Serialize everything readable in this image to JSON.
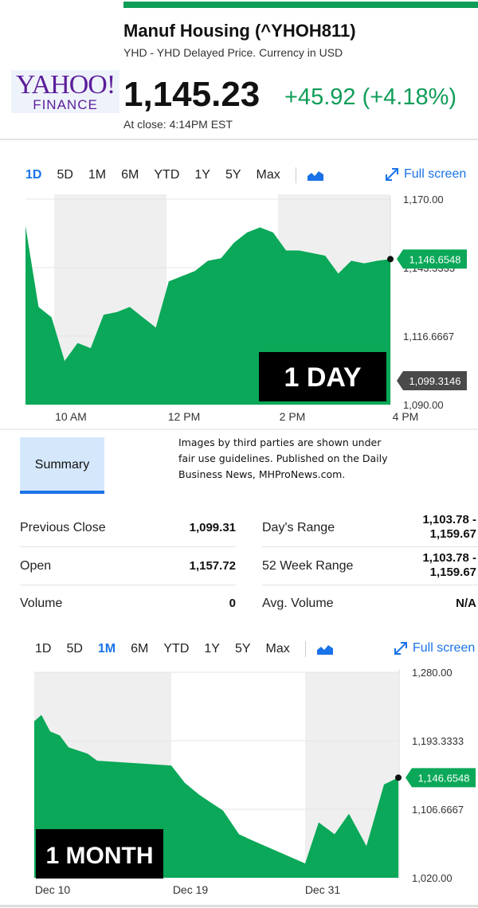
{
  "colors": {
    "green": "#0f9d58",
    "accent": "#1a73e8",
    "chart_fill": "#0aa858",
    "grid_band": "#efefef",
    "label_dark": "#4a4a4a"
  },
  "header": {
    "title": "Manuf Housing (^YHOH811)",
    "subtitle": "YHD - YHD Delayed Price. Currency in USD",
    "price": "1,145.23",
    "change": "+45.92 (+4.18%)",
    "close_time": "At close: 4:14PM EST"
  },
  "logo": {
    "brand": "YAHOO!",
    "sub": "FINANCE"
  },
  "chart1": {
    "tabs": [
      "1D",
      "5D",
      "1M",
      "6M",
      "YTD",
      "1Y",
      "5Y",
      "Max"
    ],
    "active_tab": "1D",
    "chart_type_icon": "area-chart-icon",
    "fullscreen_label": "Full screen",
    "y_ticks": [
      "1,170.00",
      "1,143.3333",
      "1,116.6667",
      "1,090.00"
    ],
    "x_ticks": [
      "10 AM",
      "12 PM",
      "2 PM",
      "4 PM"
    ],
    "current_label": "1,146.6548",
    "prev_close_label": "1,099.3146",
    "watermark": "1 DAY"
  },
  "summary": {
    "tab_label": "Summary",
    "disclaimer_lines": [
      "Images by third parties are shown under",
      "fair use guidelines.  Published on the Daily",
      "Business News, MHProNews.com."
    ],
    "left": [
      {
        "label": "Previous Close",
        "value": "1,099.31"
      },
      {
        "label": "Open",
        "value": "1,157.72"
      },
      {
        "label": "Volume",
        "value": "0"
      }
    ],
    "right": [
      {
        "label": "Day's Range",
        "value1": "1,103.78 -",
        "value2": "1,159.67"
      },
      {
        "label": "52 Week Range",
        "value1": "1,103.78 -",
        "value2": "1,159.67"
      },
      {
        "label": "Avg. Volume",
        "value1": "N/A",
        "value2": ""
      }
    ]
  },
  "chart2": {
    "tabs": [
      "1D",
      "5D",
      "1M",
      "6M",
      "YTD",
      "1Y",
      "5Y",
      "Max"
    ],
    "active_tab": "1M",
    "chart_type_icon": "area-chart-icon",
    "fullscreen_label": "Full screen",
    "y_ticks": [
      "1,280.00",
      "1,193.3333",
      "1,106.6667",
      "1,020.00"
    ],
    "x_ticks": [
      "Dec 10",
      "Dec 19",
      "Dec 31"
    ],
    "current_label": "1,146.6548",
    "watermark": "1 MONTH"
  },
  "chart_data": [
    {
      "type": "area",
      "title": "",
      "xlabel": "",
      "ylabel": "",
      "ylim": [
        1090,
        1170
      ],
      "x": [
        "9:30",
        "9:35",
        "9:40",
        "9:50",
        "10:00",
        "10:15",
        "10:30",
        "10:45",
        "11:00",
        "11:15",
        "11:30",
        "11:45",
        "12:00",
        "12:15",
        "12:30",
        "12:45",
        "13:00",
        "13:15",
        "13:30",
        "13:45",
        "14:00",
        "14:15",
        "14:30",
        "14:45",
        "15:00",
        "15:15",
        "15:30",
        "15:45",
        "16:00"
      ],
      "values": [
        1159.5,
        1128,
        1124,
        1107,
        1114,
        1112,
        1125,
        1126,
        1128,
        1124,
        1120,
        1138,
        1140,
        1142,
        1146,
        1147,
        1153,
        1157,
        1159,
        1157,
        1150,
        1150,
        1149,
        1148,
        1141,
        1146,
        1145,
        1146,
        1146.65
      ],
      "grid": true,
      "current_value": 1146.6548,
      "previous_close": 1099.3146
    },
    {
      "type": "area",
      "title": "",
      "xlabel": "",
      "ylabel": "",
      "ylim": [
        1020,
        1280
      ],
      "x": [
        "Dec 10",
        "Dec 11",
        "Dec 12",
        "Dec 13",
        "Dec 14",
        "Dec 17",
        "Dec 18",
        "Dec 19",
        "Dec 20",
        "Dec 21",
        "Dec 24",
        "Dec 26",
        "Dec 27",
        "Dec 28",
        "Dec 31",
        "Jan 2",
        "Jan 3",
        "Jan 4",
        "Jan 7",
        "Jan 8"
      ],
      "values": [
        1218,
        1226,
        1205,
        1200,
        1185,
        1177,
        1168,
        1162,
        1140,
        1125,
        1105,
        1075,
        1068,
        1038,
        1090,
        1075,
        1101,
        1060,
        1138,
        1146.65
      ],
      "grid": true,
      "current_value": 1146.6548
    }
  ]
}
